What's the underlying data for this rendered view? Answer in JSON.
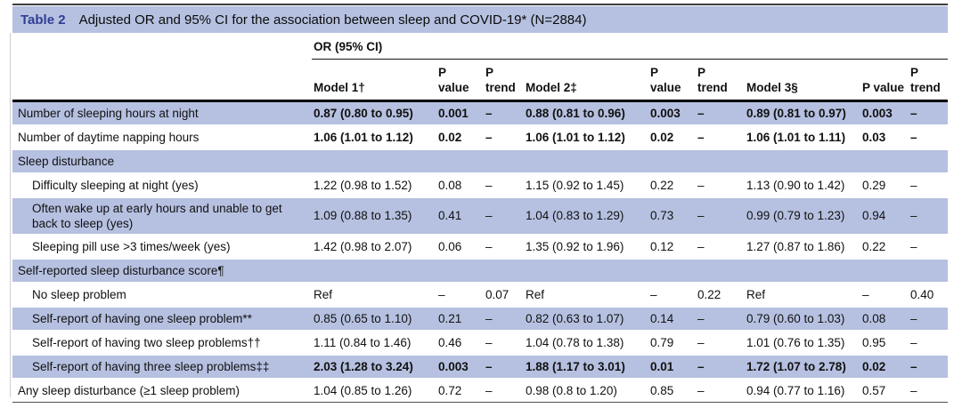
{
  "colors": {
    "band": "#b6c1e1",
    "title": "#2f3e93"
  },
  "table": {
    "title_label": "Table 2",
    "title_text": "Adjusted OR and 95% CI for the association between sleep and COVID-19* (N=2884)",
    "group_header": "OR (95% CI)",
    "columns": [
      "Model 1†",
      "P\nvalue",
      "P\ntrend",
      "Model 2‡",
      "P\nvalue",
      "P\ntrend",
      "Model 3§",
      "P value",
      "P\ntrend"
    ],
    "rows": [
      {
        "label": "Number of sleeping hours at night",
        "indent": false,
        "section": false,
        "shaded": true,
        "bold": true,
        "cells": [
          "0.87 (0.80 to 0.95)",
          "0.001",
          "–",
          "0.88 (0.81 to 0.96)",
          "0.003",
          "–",
          "0.89 (0.81 to 0.97)",
          "0.003",
          "–"
        ]
      },
      {
        "label": "Number of daytime napping hours",
        "indent": false,
        "section": false,
        "shaded": false,
        "bold": true,
        "cells": [
          "1.06 (1.01 to 1.12)",
          "0.02",
          "–",
          "1.06 (1.01 to 1.12)",
          "0.02",
          "–",
          "1.06 (1.01 to 1.11)",
          "0.03",
          "–"
        ]
      },
      {
        "label": "Sleep disturbance",
        "indent": false,
        "section": true,
        "shaded": true,
        "bold": false,
        "cells": [
          "",
          "",
          "",
          "",
          "",
          "",
          "",
          "",
          ""
        ]
      },
      {
        "label": "Difficulty sleeping at night (yes)",
        "indent": true,
        "section": false,
        "shaded": false,
        "bold": false,
        "cells": [
          "1.22 (0.98 to 1.52)",
          "0.08",
          "–",
          "1.15 (0.92 to 1.45)",
          "0.22",
          "–",
          "1.13 (0.90 to 1.42)",
          "0.29",
          "–"
        ]
      },
      {
        "label": "Often wake up at early hours and unable to get back to sleep (yes)",
        "indent": true,
        "section": false,
        "shaded": true,
        "bold": false,
        "cells": [
          "1.09 (0.88 to 1.35)",
          "0.41",
          "–",
          "1.04 (0.83 to 1.29)",
          "0.73",
          "–",
          "0.99 (0.79 to 1.23)",
          "0.94",
          "–"
        ]
      },
      {
        "label": "Sleeping pill use >3 times/week (yes)",
        "indent": true,
        "section": false,
        "shaded": false,
        "bold": false,
        "cells": [
          "1.42 (0.98 to 2.07)",
          "0.06",
          "–",
          "1.35 (0.92 to 1.96)",
          "0.12",
          "–",
          "1.27 (0.87 to 1.86)",
          "0.22",
          "–"
        ]
      },
      {
        "label": "Self-reported sleep disturbance score¶",
        "indent": false,
        "section": true,
        "shaded": true,
        "bold": false,
        "cells": [
          "",
          "",
          "",
          "",
          "",
          "",
          "",
          "",
          ""
        ]
      },
      {
        "label": "No sleep problem",
        "indent": true,
        "section": false,
        "shaded": false,
        "bold": false,
        "cells": [
          "Ref",
          "–",
          "0.07",
          "Ref",
          "–",
          "0.22",
          "Ref",
          "–",
          "0.40"
        ]
      },
      {
        "label": "Self-report of having one sleep problem**",
        "indent": true,
        "section": false,
        "shaded": true,
        "bold": false,
        "cells": [
          "0.85 (0.65 to 1.10)",
          "0.21",
          "–",
          "0.82 (0.63 to 1.07)",
          "0.14",
          "–",
          "0.79 (0.60 to 1.03)",
          "0.08",
          "–"
        ]
      },
      {
        "label": "Self-report of having two sleep problems††",
        "indent": true,
        "section": false,
        "shaded": false,
        "bold": false,
        "cells": [
          "1.11 (0.84 to 1.46)",
          "0.46",
          "–",
          "1.04 (0.78 to 1.38)",
          "0.79",
          "–",
          "1.01 (0.76 to 1.35)",
          "0.95",
          "–"
        ]
      },
      {
        "label": "Self-report of having three sleep problems‡‡",
        "indent": true,
        "section": false,
        "shaded": true,
        "bold": true,
        "cells": [
          "2.03 (1.28 to 3.24)",
          "0.003",
          "–",
          "1.88 (1.17 to 3.01)",
          "0.01",
          "–",
          "1.72 (1.07 to 2.78)",
          "0.02",
          "–"
        ]
      },
      {
        "label": "Any sleep disturbance (≥1 sleep problem)",
        "indent": false,
        "section": false,
        "shaded": false,
        "bold": false,
        "cells": [
          "1.04 (0.85 to 1.26)",
          "0.72",
          "–",
          "0.98 (0.8 to 1.20)",
          "0.85",
          "–",
          "0.94 (0.77 to 1.16)",
          "0.57",
          "–"
        ]
      }
    ]
  }
}
